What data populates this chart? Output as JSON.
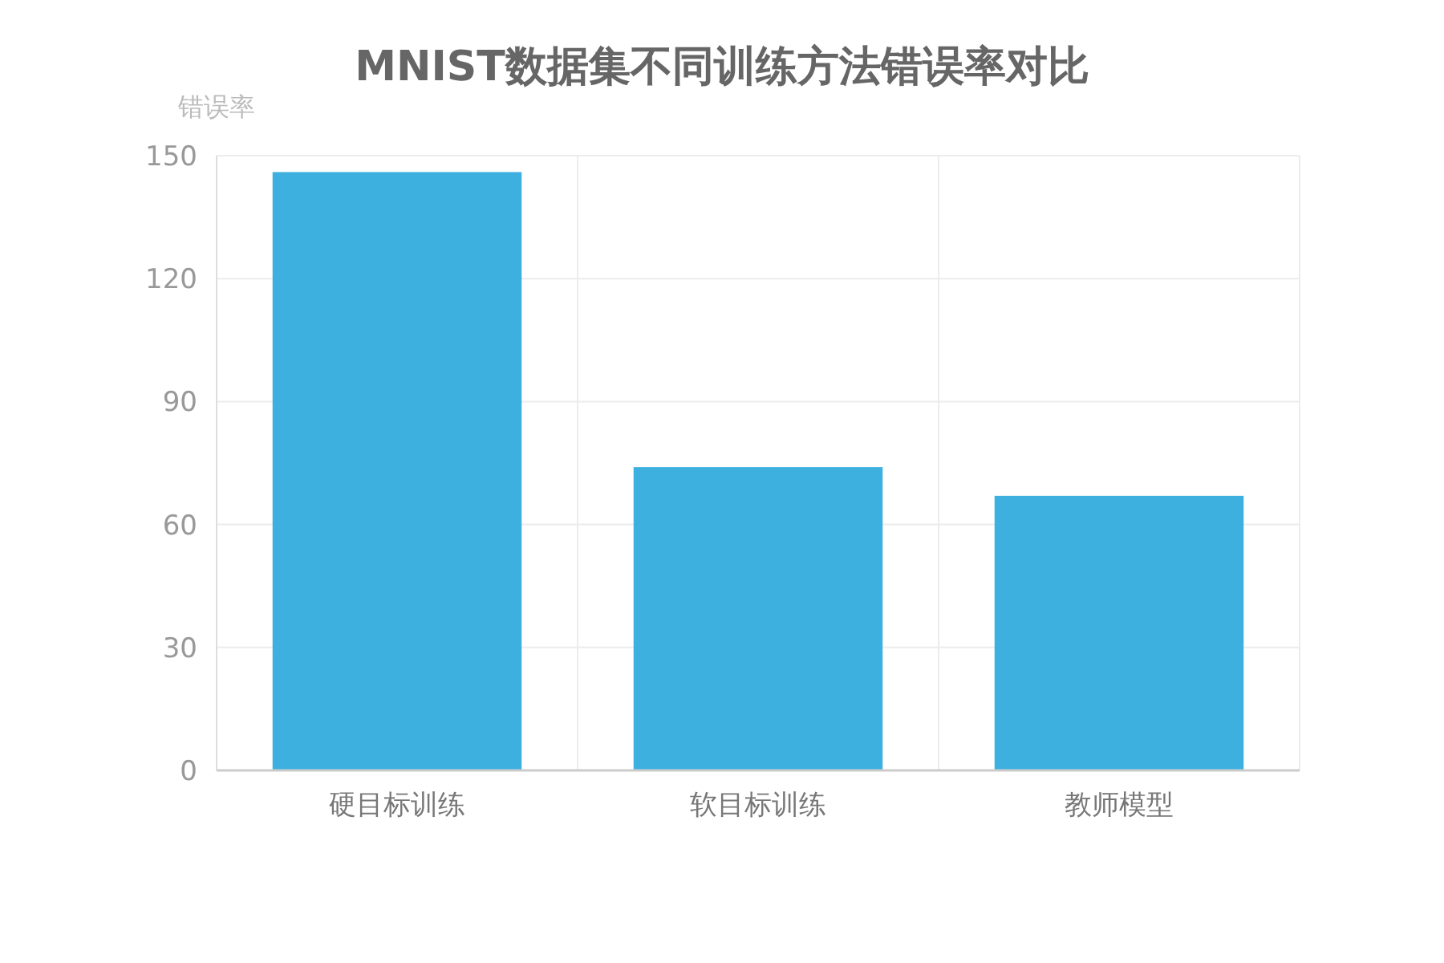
{
  "chart_data": {
    "type": "bar",
    "title": "MNIST数据集不同训练方法错误率对比",
    "ylabel": "错误率",
    "categories": [
      "硬目标训练",
      "软目标训练",
      "教师模型"
    ],
    "values": [
      146,
      74,
      67
    ],
    "color": "#3eb0e0",
    "ylim": [
      0,
      150
    ],
    "yticks": [
      0,
      30,
      60,
      90,
      120,
      150
    ],
    "grid": true
  }
}
